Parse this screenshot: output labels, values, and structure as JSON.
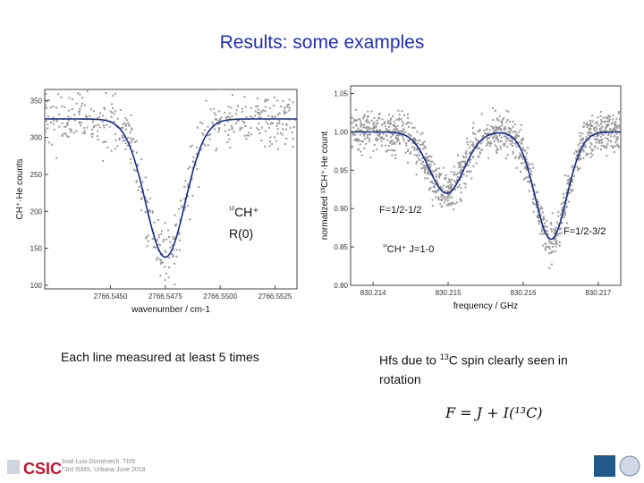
{
  "title": "Results: some examples",
  "captions": {
    "left": "Each line measured at least 5 times",
    "right_line1_a": "Hfs due to ",
    "right_line1_sup": "13",
    "right_line1_b": "C spin  clearly seen in",
    "right_line2": "rotation",
    "formula": "F = J + I(¹³C)"
  },
  "footer": {
    "author": "José Luis Doménech. TI09",
    "conference": "73rd ISMS,  Urbana June 2018",
    "logo_left": "CSIC"
  },
  "colors": {
    "title": "#1f2fb4",
    "fit": "#1a2a8c",
    "data": "#999999"
  },
  "chart_data": [
    {
      "type": "scatter",
      "xlabel": "wavenumber / cm-1",
      "ylabel": "CH⁺·He counts",
      "xlim": [
        2766.542,
        2766.5535
      ],
      "ylim": [
        95,
        365
      ],
      "xticks": [
        2766.545,
        2766.5475,
        2766.55,
        2766.5525
      ],
      "xtick_labels": [
        "2766.5450",
        "2766.5475",
        "2766.5500",
        "2766.5525"
      ],
      "yticks": [
        100,
        150,
        200,
        250,
        300,
        350
      ],
      "annotation": [
        "¹²CH⁺",
        "R(0)"
      ],
      "fit": {
        "baseline": 325,
        "depth": 187,
        "center": 2766.5475,
        "sigma": 0.0009
      },
      "noise": 20,
      "n_points": 520
    },
    {
      "type": "scatter",
      "xlabel": "frequency / GHz",
      "ylabel": "normalized ¹³CH⁺·He count",
      "xlim": [
        830.2137,
        830.2173
      ],
      "ylim": [
        0.8,
        1.06
      ],
      "xticks": [
        830.214,
        830.215,
        830.216,
        830.217
      ],
      "xtick_labels": [
        "830.214",
        "830.215",
        "830.216",
        "830.217"
      ],
      "yticks": [
        0.8,
        0.85,
        0.9,
        0.95,
        1.0,
        1.05
      ],
      "ytick_labels": [
        "0.80",
        "0.85",
        "0.90",
        "0.95",
        "1.00",
        "1.05"
      ],
      "annotations": [
        "F=1/2-1/2",
        "F=1/2-3/2",
        "¹³CH⁺ J=1-0"
      ],
      "fit": {
        "baseline": 1.0,
        "peaks": [
          {
            "center": 830.21498,
            "depth": 0.08,
            "sigma": 0.00023
          },
          {
            "center": 830.21637,
            "depth": 0.14,
            "sigma": 0.00021
          }
        ]
      },
      "noise": 0.013,
      "n_points": 1300
    }
  ]
}
